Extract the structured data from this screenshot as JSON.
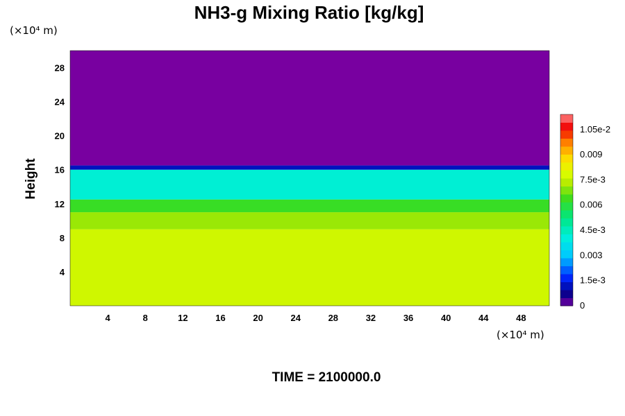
{
  "chart_data": {
    "type": "heatmap",
    "title": "NH3-g Mixing Ratio [kg/kg]",
    "ylabel": "Height",
    "y_unit": "(×10⁴ m)",
    "x_unit": "(×10⁴ m)",
    "xlim": [
      0,
      51
    ],
    "ylim": [
      0,
      30
    ],
    "x_ticks": [
      "4",
      "8",
      "12",
      "16",
      "20",
      "24",
      "28",
      "32",
      "36",
      "40",
      "44",
      "48"
    ],
    "y_ticks": [
      "4",
      "8",
      "12",
      "16",
      "20",
      "24",
      "28"
    ],
    "colorbar": {
      "min": 0,
      "max": 0.0114,
      "tick_labels": [
        "0",
        "1.5e-3",
        "0.003",
        "4.5e-3",
        "0.006",
        "7.5e-3",
        "0.009",
        "1.05e-2"
      ],
      "tick_values": [
        0,
        0.0015,
        0.003,
        0.0045,
        0.006,
        0.0075,
        0.009,
        0.0105
      ]
    },
    "vertical_profile": [
      {
        "height_range": [
          0,
          9
        ],
        "value": 0.0077
      },
      {
        "height_range": [
          9,
          11
        ],
        "value": 0.0071
      },
      {
        "height_range": [
          11,
          12.5
        ],
        "value": 0.0063
      },
      {
        "height_range": [
          12.5,
          16
        ],
        "value": 0.0042
      },
      {
        "height_range": [
          16,
          16.5
        ],
        "value": 0.0012
      },
      {
        "height_range": [
          16.5,
          30
        ],
        "value": 0.0
      }
    ],
    "time_label": "TIME = 2100000.0"
  }
}
